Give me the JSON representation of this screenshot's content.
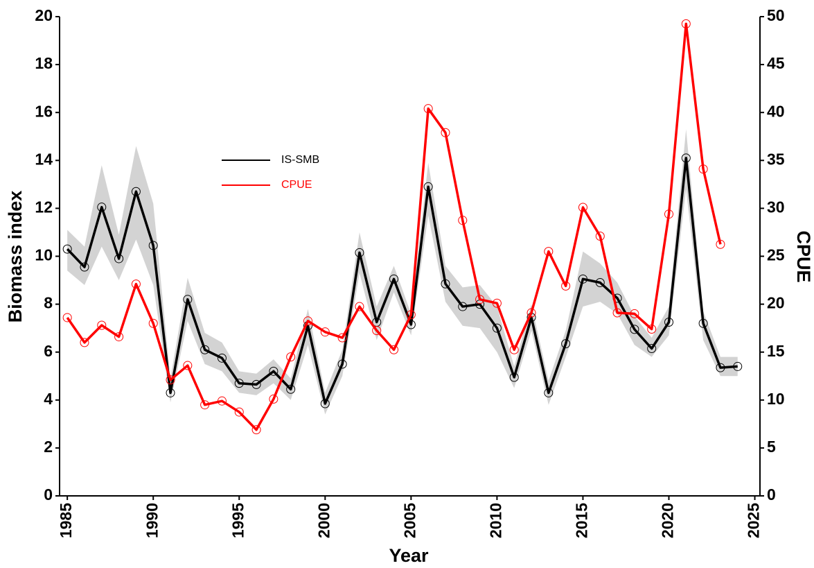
{
  "chart_data": {
    "type": "line",
    "xlabel": "Year",
    "ylabel": "Biomass index",
    "y2label": "CPUE",
    "x": [
      1985,
      1986,
      1987,
      1988,
      1989,
      1990,
      1991,
      1992,
      1993,
      1994,
      1995,
      1996,
      1997,
      1998,
      1999,
      2000,
      2001,
      2002,
      2003,
      2004,
      2005,
      2006,
      2007,
      2008,
      2009,
      2010,
      2011,
      2012,
      2013,
      2014,
      2015,
      2016,
      2017,
      2018,
      2019,
      2020,
      2021,
      2022,
      2023,
      2024
    ],
    "series": [
      {
        "name": "IS-SMB",
        "color": "#000000",
        "band_color": "#d3d3d3",
        "values": [
          10.3,
          9.55,
          12.05,
          9.9,
          12.7,
          10.45,
          4.3,
          8.2,
          6.1,
          5.75,
          4.7,
          4.65,
          5.2,
          4.45,
          7.1,
          3.85,
          5.5,
          10.15,
          7.25,
          9.05,
          7.15,
          12.9,
          8.85,
          7.9,
          8.0,
          7.0,
          4.95,
          7.45,
          4.3,
          6.35,
          9.05,
          8.9,
          8.25,
          6.95,
          6.15,
          7.25,
          14.1,
          7.2,
          5.35,
          5.4
        ],
        "lower": [
          9.4,
          8.8,
          10.4,
          9.0,
          10.7,
          8.8,
          3.9,
          7.3,
          5.5,
          5.2,
          4.3,
          4.2,
          4.7,
          4.0,
          6.3,
          3.4,
          5.0,
          9.3,
          6.5,
          8.5,
          6.7,
          11.7,
          8.1,
          7.1,
          7.0,
          6.0,
          4.5,
          6.9,
          3.8,
          5.8,
          7.9,
          8.1,
          7.6,
          6.3,
          5.8,
          6.7,
          12.8,
          6.5,
          5.0,
          5.0
        ],
        "upper": [
          11.1,
          10.4,
          13.8,
          10.9,
          14.6,
          12.2,
          4.9,
          9.1,
          6.8,
          6.4,
          5.2,
          5.1,
          5.7,
          4.9,
          7.8,
          4.3,
          6.1,
          11.0,
          7.9,
          9.6,
          7.6,
          13.9,
          9.6,
          8.7,
          8.8,
          7.9,
          5.4,
          8.0,
          4.8,
          6.9,
          10.2,
          9.7,
          8.9,
          7.5,
          6.6,
          7.9,
          15.3,
          7.7,
          5.8,
          5.8
        ]
      },
      {
        "name": "CPUE",
        "color": "#ff0000",
        "axis": "y2",
        "values": [
          18.6,
          16.0,
          17.8,
          16.6,
          22.1,
          18.0,
          12.1,
          13.6,
          9.5,
          9.9,
          8.75,
          6.9,
          10.1,
          14.5,
          18.25,
          17.1,
          16.5,
          19.75,
          17.25,
          15.25,
          18.9,
          40.4,
          37.9,
          28.75,
          20.5,
          20.1,
          15.25,
          19.1,
          25.5,
          21.9,
          30.1,
          27.1,
          19.1,
          19.0,
          17.4,
          29.4,
          49.25,
          34.1,
          26.25,
          null
        ]
      }
    ],
    "xlim": [
      1984.55,
      2025.3
    ],
    "xticks": [
      1985,
      1990,
      1995,
      2000,
      2005,
      2010,
      2015,
      2020,
      2025
    ],
    "ylim": [
      0,
      20
    ],
    "yticks": [
      0,
      2,
      4,
      6,
      8,
      10,
      12,
      14,
      16,
      18,
      20
    ],
    "y2lim": [
      0,
      50
    ],
    "y2ticks": [
      0,
      5,
      10,
      15,
      20,
      25,
      30,
      35,
      40,
      45,
      50
    ],
    "legend_position": "upper-left"
  }
}
